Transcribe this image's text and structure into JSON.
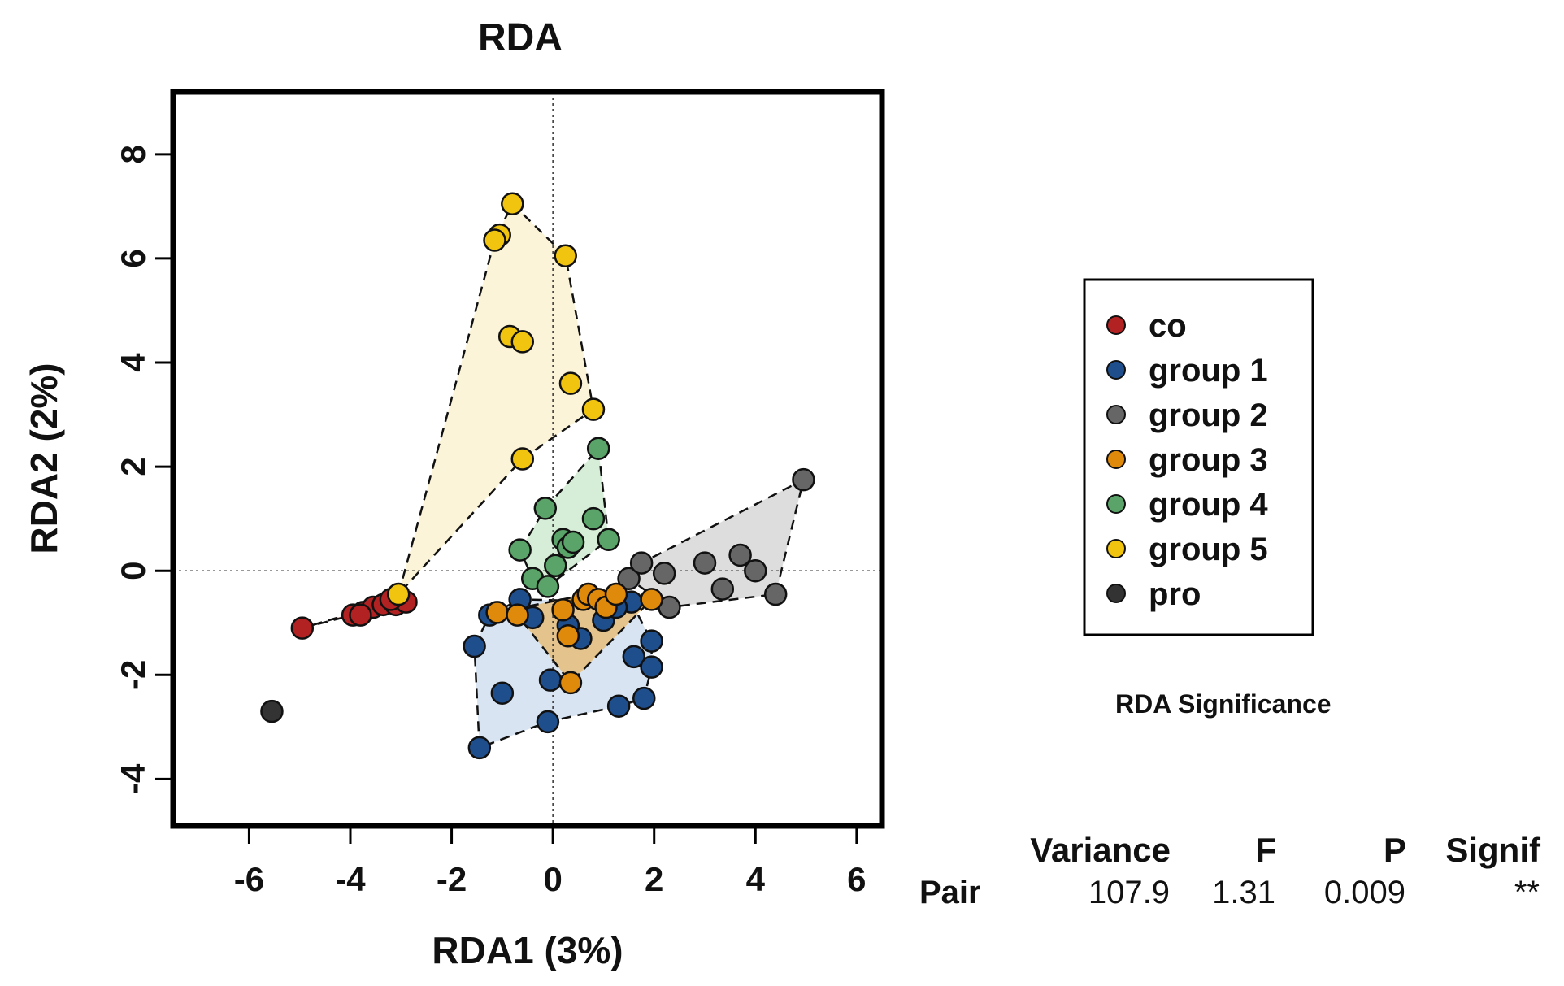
{
  "chart_data": {
    "type": "scatter",
    "title": "RDA",
    "xlabel": "RDA1 (3%)",
    "ylabel": "RDA2 (2%)",
    "xlim": [
      -7.5,
      6.5
    ],
    "ylim": [
      -4.9,
      9.2
    ],
    "xticks": [
      -6,
      -4,
      -2,
      0,
      2,
      4,
      6
    ],
    "yticks": [
      -4,
      -2,
      0,
      2,
      4,
      6,
      8
    ],
    "xtick_labels": [
      "-6",
      "-4",
      "-2",
      "0",
      "2",
      "4",
      "6"
    ],
    "ytick_labels": [
      "-4",
      "-2",
      "0",
      "2",
      "4",
      "6",
      "8"
    ],
    "reference_lines": {
      "x": 0,
      "y": 0
    },
    "legend_position": "right",
    "series": [
      {
        "name": "co",
        "color": "#b22222",
        "fill": "#b22222",
        "points": [
          [
            -4.95,
            -1.1
          ],
          [
            -3.95,
            -0.85
          ],
          [
            -3.75,
            -0.8
          ],
          [
            -3.55,
            -0.7
          ],
          [
            -3.35,
            -0.65
          ],
          [
            -3.1,
            -0.65
          ],
          [
            -2.9,
            -0.6
          ],
          [
            -3.8,
            -0.85
          ],
          [
            -3.2,
            -0.55
          ]
        ],
        "hull": [
          [
            -4.95,
            -1.1
          ],
          [
            -3.95,
            -0.85
          ],
          [
            -2.9,
            -0.6
          ],
          [
            -3.2,
            -0.55
          ],
          [
            -3.55,
            -0.7
          ]
        ]
      },
      {
        "name": "group 1",
        "color": "#1f4e8c",
        "fill": "#a9c4e0",
        "points": [
          [
            -1.55,
            -1.45
          ],
          [
            -1.45,
            -3.4
          ],
          [
            -1.25,
            -0.85
          ],
          [
            -1.0,
            -2.35
          ],
          [
            -0.65,
            -0.55
          ],
          [
            -0.4,
            -0.9
          ],
          [
            -0.05,
            -2.1
          ],
          [
            -0.1,
            -2.9
          ],
          [
            0.55,
            -1.3
          ],
          [
            1.0,
            -0.95
          ],
          [
            1.3,
            -2.6
          ],
          [
            1.55,
            -0.6
          ],
          [
            1.6,
            -1.65
          ],
          [
            1.8,
            -2.45
          ],
          [
            1.95,
            -1.35
          ],
          [
            1.95,
            -1.85
          ],
          [
            1.25,
            -0.7
          ],
          [
            0.3,
            -1.05
          ]
        ],
        "hull": [
          [
            -1.55,
            -1.45
          ],
          [
            -1.25,
            -0.85
          ],
          [
            -0.65,
            -0.55
          ],
          [
            1.55,
            -0.6
          ],
          [
            1.95,
            -1.35
          ],
          [
            1.95,
            -1.85
          ],
          [
            1.8,
            -2.45
          ],
          [
            1.3,
            -2.6
          ],
          [
            -0.1,
            -2.9
          ],
          [
            -1.45,
            -3.4
          ]
        ]
      },
      {
        "name": "group 2",
        "color": "#666666",
        "fill": "#b3b3b3",
        "points": [
          [
            1.5,
            -0.15
          ],
          [
            1.75,
            0.15
          ],
          [
            2.2,
            -0.05
          ],
          [
            2.3,
            -0.7
          ],
          [
            3.0,
            0.15
          ],
          [
            3.35,
            -0.35
          ],
          [
            3.7,
            0.3
          ],
          [
            4.0,
            0.0
          ],
          [
            4.4,
            -0.45
          ],
          [
            4.95,
            1.75
          ]
        ],
        "hull": [
          [
            1.5,
            -0.15
          ],
          [
            1.75,
            0.15
          ],
          [
            4.95,
            1.75
          ],
          [
            4.4,
            -0.45
          ],
          [
            2.3,
            -0.7
          ]
        ]
      },
      {
        "name": "group 3",
        "color": "#e08a0b",
        "fill": "#f39c12",
        "points": [
          [
            -1.1,
            -0.8
          ],
          [
            -0.7,
            -0.85
          ],
          [
            0.2,
            -0.75
          ],
          [
            0.3,
            -1.25
          ],
          [
            0.35,
            -2.15
          ],
          [
            0.6,
            -0.55
          ],
          [
            0.7,
            -0.45
          ],
          [
            0.9,
            -0.55
          ],
          [
            1.05,
            -0.7
          ],
          [
            1.25,
            -0.45
          ],
          [
            1.95,
            -0.55
          ]
        ],
        "hull": [
          [
            -1.1,
            -0.8
          ],
          [
            0.7,
            -0.45
          ],
          [
            1.25,
            -0.45
          ],
          [
            1.95,
            -0.55
          ],
          [
            0.35,
            -2.15
          ],
          [
            -0.7,
            -0.85
          ]
        ]
      },
      {
        "name": "group 4",
        "color": "#5aa469",
        "fill": "#a5d6a7",
        "points": [
          [
            -0.65,
            0.4
          ],
          [
            -0.4,
            -0.15
          ],
          [
            -0.15,
            1.2
          ],
          [
            0.05,
            0.1
          ],
          [
            0.2,
            0.6
          ],
          [
            0.3,
            0.45
          ],
          [
            0.4,
            0.55
          ],
          [
            0.8,
            1.0
          ],
          [
            0.9,
            2.35
          ],
          [
            1.1,
            0.6
          ],
          [
            -0.1,
            -0.3
          ]
        ],
        "hull": [
          [
            -0.65,
            0.4
          ],
          [
            -0.15,
            1.2
          ],
          [
            0.9,
            2.35
          ],
          [
            1.1,
            0.6
          ],
          [
            -0.1,
            -0.3
          ],
          [
            -0.4,
            -0.15
          ]
        ]
      },
      {
        "name": "group 5",
        "color": "#f1c40f",
        "fill": "#f7e7a8",
        "points": [
          [
            -0.8,
            7.05
          ],
          [
            -1.05,
            6.45
          ],
          [
            -1.15,
            6.35
          ],
          [
            0.25,
            6.05
          ],
          [
            -0.85,
            4.5
          ],
          [
            -0.6,
            4.4
          ],
          [
            0.35,
            3.6
          ],
          [
            0.8,
            3.1
          ],
          [
            -0.6,
            2.15
          ],
          [
            -3.05,
            -0.45
          ]
        ],
        "hull": [
          [
            -3.05,
            -0.45
          ],
          [
            -1.15,
            6.35
          ],
          [
            -0.8,
            7.05
          ],
          [
            0.25,
            6.05
          ],
          [
            0.8,
            3.1
          ],
          [
            -0.6,
            2.15
          ]
        ]
      },
      {
        "name": "pro",
        "color": "#333333",
        "fill": "#333333",
        "points": [
          [
            -5.55,
            -2.7
          ]
        ],
        "hull": []
      }
    ]
  },
  "significance": {
    "title": "RDA Significance",
    "headers": [
      "Variance",
      "F",
      "P",
      "Signif"
    ],
    "row_label": "Pair",
    "values": [
      "107.9",
      "1.31",
      "0.009",
      "**"
    ]
  }
}
